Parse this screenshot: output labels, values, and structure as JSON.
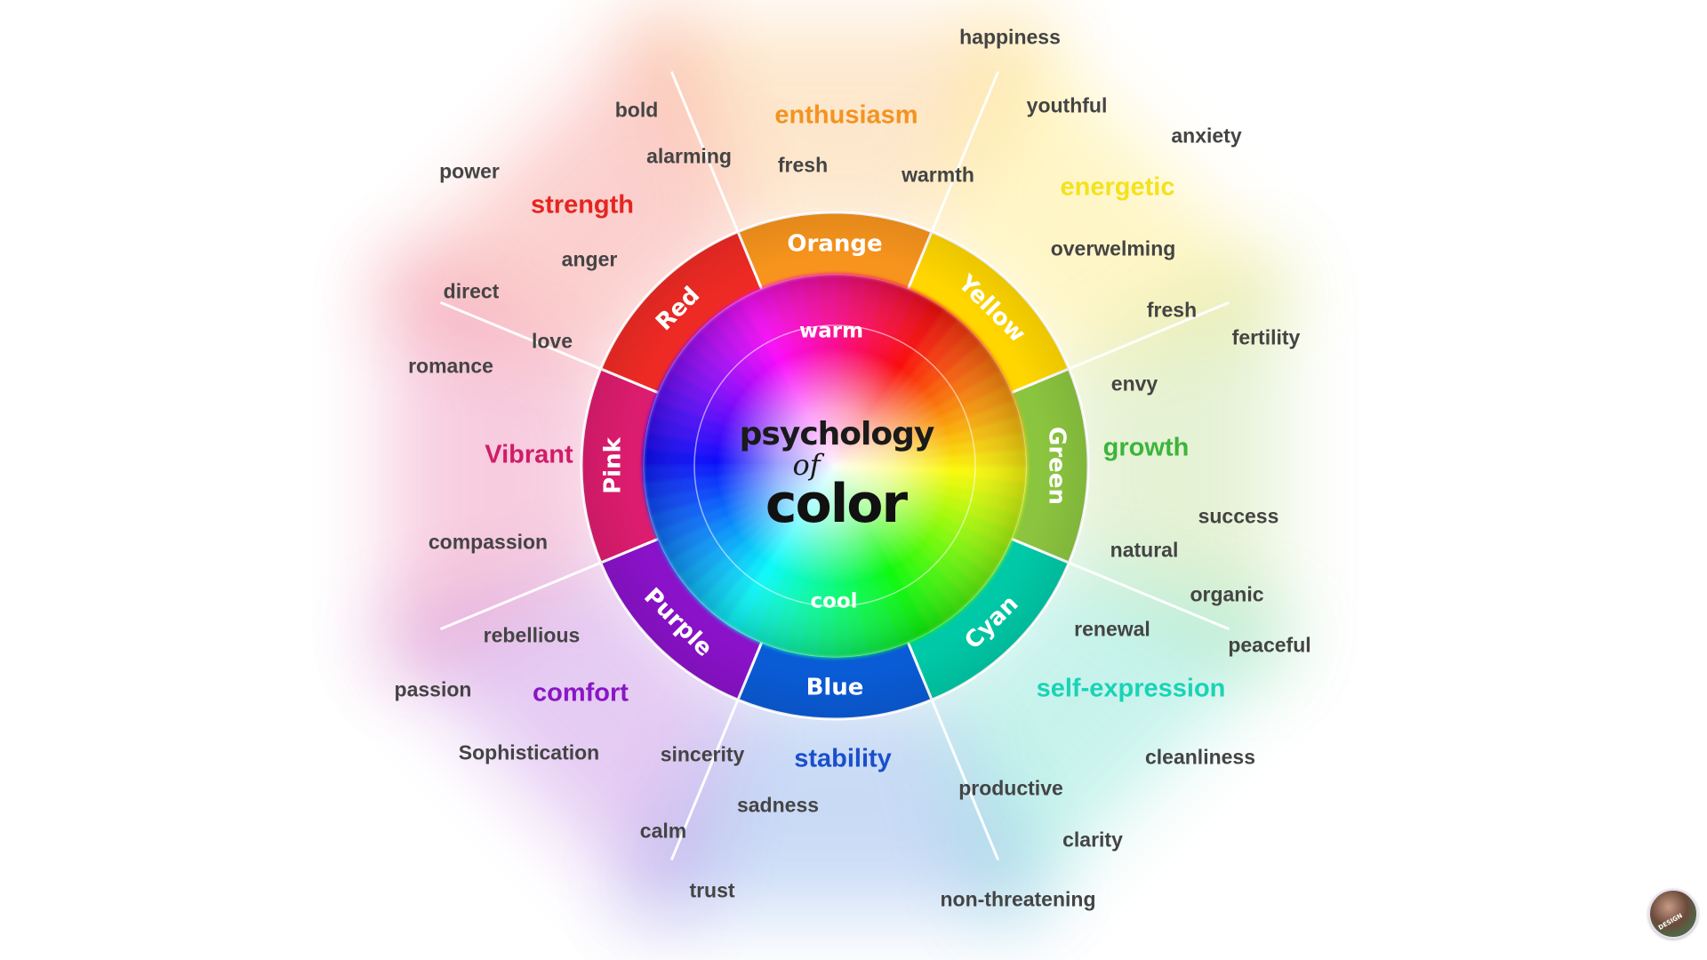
{
  "title": {
    "line1": "psychology",
    "line2": "of",
    "line3": "color"
  },
  "temperature": {
    "warm": "warm",
    "cool": "cool"
  },
  "segments": [
    {
      "name": "Orange",
      "color": "#f7941d",
      "keyword": "enthusiasm",
      "words": [
        "happiness",
        "fresh",
        "warmth"
      ]
    },
    {
      "name": "Yellow",
      "color": "#ffd600",
      "keyword": "energetic",
      "words": [
        "youthful",
        "anxiety",
        "overwelming"
      ]
    },
    {
      "name": "Green",
      "color": "#8bc53f",
      "keyword": "growth",
      "words": [
        "fresh",
        "fertility",
        "envy",
        "success",
        "natural"
      ]
    },
    {
      "name": "Cyan",
      "color": "#00c9a7",
      "keyword": "self-expression",
      "words": [
        "organic",
        "renewal",
        "peaceful",
        "cleanliness"
      ]
    },
    {
      "name": "Blue",
      "color": "#0a5bd6",
      "keyword": "stability",
      "words": [
        "sadness",
        "productive",
        "clarity",
        "non-threatening"
      ]
    },
    {
      "name": "Purple",
      "color": "#8a12c9",
      "keyword": "comfort",
      "words": [
        "rebellious",
        "passion",
        "Sophistication",
        "sincerity",
        "calm",
        "trust"
      ]
    },
    {
      "name": "Pink",
      "color": "#dc1c6e",
      "keyword": "Vibrant",
      "words": [
        "romance",
        "compassion"
      ]
    },
    {
      "name": "Red",
      "color": "#ee2a24",
      "keyword": "strength",
      "words": [
        "bold",
        "alarming",
        "power",
        "anger",
        "direct",
        "love"
      ]
    }
  ],
  "keyword_colors": {
    "enthusiasm": "#f39321",
    "energetic": "#f4e21c",
    "growth": "#3cb43c",
    "self-expression": "#19d3b6",
    "stability": "#1a4fcc",
    "comfort": "#8a16c4",
    "Vibrant": "#d01c6a",
    "strength": "#e3261f"
  },
  "avatar": {
    "text": "DESIGN"
  }
}
